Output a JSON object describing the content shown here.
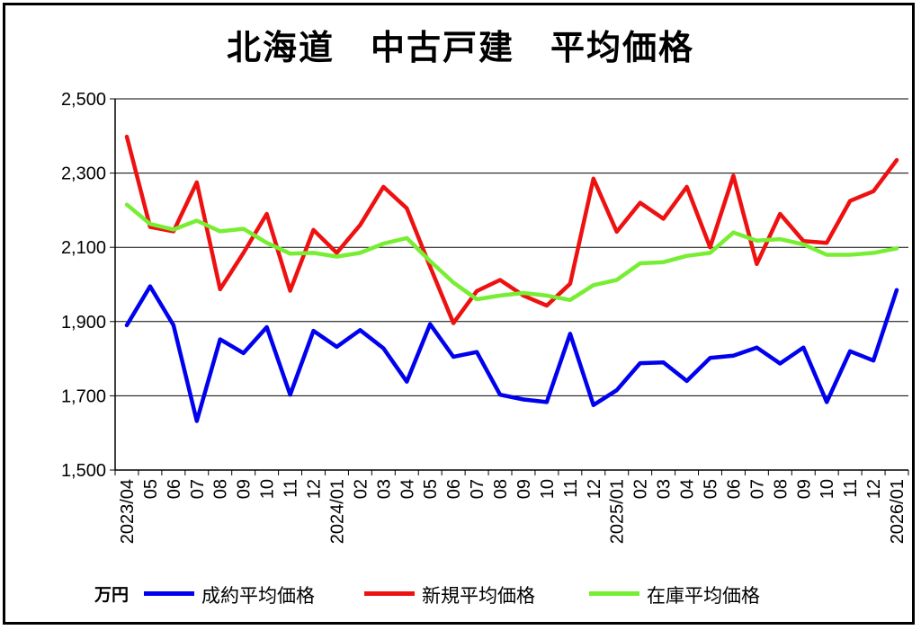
{
  "title": "北海道　中古戸建　平均価格",
  "unit_label": "万円",
  "colors": {
    "background": "#ffffff",
    "axis": "#000000",
    "gridline": "#000000",
    "series_1": "#0000ee",
    "series_2": "#ee1111",
    "series_3": "#77ee33"
  },
  "chart_data": {
    "type": "line",
    "title": "北海道　中古戸建　平均価格",
    "ylabel": "万円",
    "xlabel": "",
    "ylim": [
      1500,
      2500
    ],
    "yticks": [
      "1,500",
      "1,700",
      "1,900",
      "2,100",
      "2,300",
      "2,500"
    ],
    "ytick_values": [
      1500,
      1700,
      1900,
      2100,
      2300,
      2500
    ],
    "grid": "horizontal",
    "legend_position": "bottom",
    "categories": [
      "2023/04",
      "05",
      "06",
      "07",
      "08",
      "09",
      "10",
      "11",
      "12",
      "2024/01",
      "02",
      "03",
      "04",
      "05",
      "06",
      "07",
      "08",
      "09",
      "10",
      "11",
      "12",
      "2025/01",
      "02",
      "03",
      "04",
      "05",
      "06",
      "07",
      "08",
      "09",
      "10",
      "11",
      "12",
      "2026/01"
    ],
    "series": [
      {
        "name": "成約平均価格",
        "color": "#0000ee",
        "values": [
          1890,
          1995,
          1890,
          1632,
          1852,
          1815,
          1885,
          1703,
          1875,
          1832,
          1877,
          1828,
          1738,
          1893,
          1805,
          1818,
          1703,
          1690,
          1683,
          1867,
          1675,
          1715,
          1788,
          1790,
          1740,
          1802,
          1808,
          1830,
          1787,
          1830,
          1683,
          1820,
          1795,
          1985
        ]
      },
      {
        "name": "新規平均価格",
        "color": "#ee1111",
        "values": [
          2398,
          2155,
          2143,
          2275,
          1987,
          2085,
          2190,
          1983,
          2147,
          2085,
          2160,
          2263,
          2205,
          2048,
          1896,
          1982,
          2012,
          1970,
          1943,
          2002,
          2285,
          2142,
          2220,
          2177,
          2263,
          2100,
          2293,
          2055,
          2190,
          2117,
          2112,
          2225,
          2251,
          2335
        ]
      },
      {
        "name": "在庫平均価格",
        "color": "#77ee33",
        "values": [
          2215,
          2163,
          2148,
          2172,
          2143,
          2150,
          2112,
          2083,
          2085,
          2075,
          2085,
          2110,
          2125,
          2063,
          2005,
          1960,
          1970,
          1977,
          1970,
          1958,
          1998,
          2012,
          2057,
          2060,
          2077,
          2085,
          2140,
          2118,
          2122,
          2108,
          2080,
          2080,
          2085,
          2097
        ]
      }
    ]
  }
}
